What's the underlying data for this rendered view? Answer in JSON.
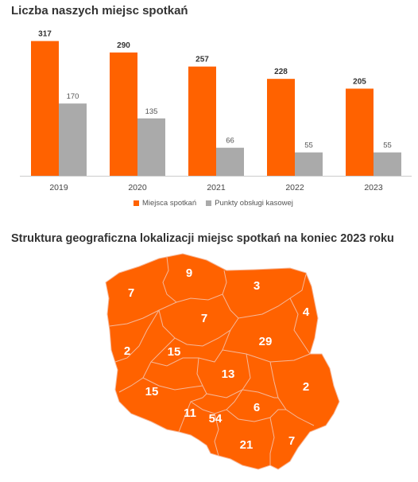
{
  "titles": {
    "bar_chart": "Liczba naszych miejsc spotkań",
    "map": "Struktura geograficzna lokalizacji miejsc spotkań na koniec 2023 roku"
  },
  "colors": {
    "series_1": "#FF6200",
    "series_2": "#AAAAAA",
    "map_fill": "#FF6200",
    "map_border": "#F5B89A"
  },
  "chart_data": [
    {
      "type": "bar",
      "title": "Liczba naszych miejsc spotkań",
      "categories": [
        "2019",
        "2020",
        "2021",
        "2022",
        "2023"
      ],
      "series": [
        {
          "name": "Miejsca spotkań",
          "values": [
            317,
            290,
            257,
            228,
            205
          ]
        },
        {
          "name": "Punkty obsługi kasowej",
          "values": [
            170,
            135,
            66,
            55,
            55
          ]
        }
      ],
      "ylim": [
        0,
        320
      ],
      "grid": false,
      "legend": "bottom"
    },
    {
      "type": "map",
      "title": "Struktura geograficzna lokalizacji miejsc spotkań na koniec 2023 roku",
      "regions": [
        {
          "name": "zachodniopomorskie",
          "value": 7
        },
        {
          "name": "pomorskie",
          "value": 9
        },
        {
          "name": "warmińsko-mazurskie",
          "value": 3
        },
        {
          "name": "podlaskie",
          "value": 4
        },
        {
          "name": "kujawsko-pomorskie",
          "value": 7
        },
        {
          "name": "lubuskie",
          "value": 2
        },
        {
          "name": "wielkopolskie",
          "value": 15
        },
        {
          "name": "mazowieckie",
          "value": 29
        },
        {
          "name": "łódzkie",
          "value": 13
        },
        {
          "name": "dolnośląskie",
          "value": 15
        },
        {
          "name": "lubelskie",
          "value": 2
        },
        {
          "name": "opolskie",
          "value": 11
        },
        {
          "name": "śląskie",
          "value": 54
        },
        {
          "name": "świętokrzyskie",
          "value": 6
        },
        {
          "name": "małopolskie",
          "value": 21
        },
        {
          "name": "podkarpackie",
          "value": 7
        }
      ]
    }
  ]
}
